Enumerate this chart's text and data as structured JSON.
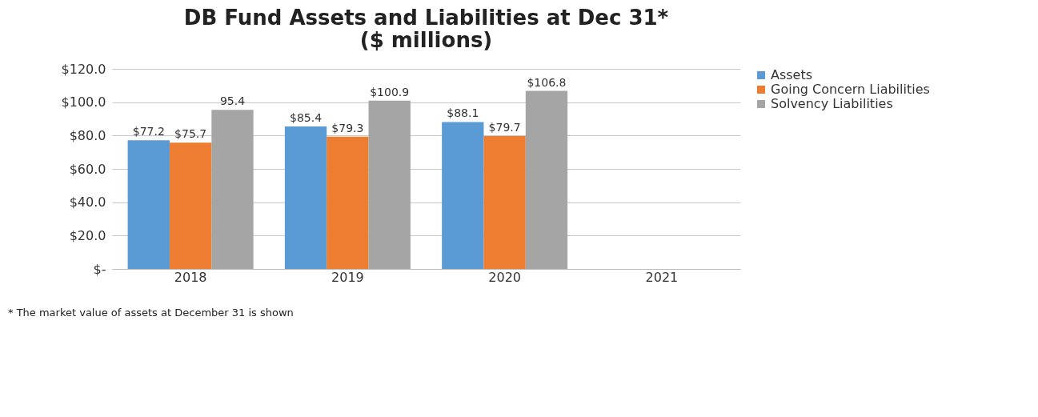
{
  "chart_data": {
    "type": "bar",
    "title": [
      "DB Fund Assets and Liabilities at Dec 31*",
      "($ millions)"
    ],
    "categories": [
      "2018",
      "2019",
      "2020",
      "2021"
    ],
    "series": [
      {
        "name": "Assets",
        "color": "#5b9bd5",
        "values": [
          77.2,
          85.4,
          88.1,
          null
        ],
        "value_labels": [
          "$77.2",
          "$85.4",
          "$88.1",
          null
        ]
      },
      {
        "name": "Going Concern Liabilities",
        "color": "#ed7d31",
        "values": [
          75.7,
          79.3,
          79.7,
          null
        ],
        "value_labels": [
          "$75.7",
          "$79.3",
          "$79.7",
          null
        ]
      },
      {
        "name": "Solvency Liabilities",
        "color": "#a5a5a5",
        "values": [
          95.4,
          100.9,
          106.8,
          null
        ],
        "value_labels": [
          "95.4",
          "$100.9",
          "$106.8",
          null
        ]
      }
    ],
    "ylim": [
      0,
      120
    ],
    "yticks": [
      {
        "value": 0,
        "label": "$-"
      },
      {
        "value": 20,
        "label": "$20.0"
      },
      {
        "value": 40,
        "label": "$40.0"
      },
      {
        "value": 60,
        "label": "$60.0"
      },
      {
        "value": 80,
        "label": "$80.0"
      },
      {
        "value": 100,
        "label": "$100.0"
      },
      {
        "value": 120,
        "label": "$120.0"
      }
    ],
    "grid": "y",
    "legend": "top right",
    "annotations": [
      "* The market value of assets at December 31 is shown"
    ]
  }
}
